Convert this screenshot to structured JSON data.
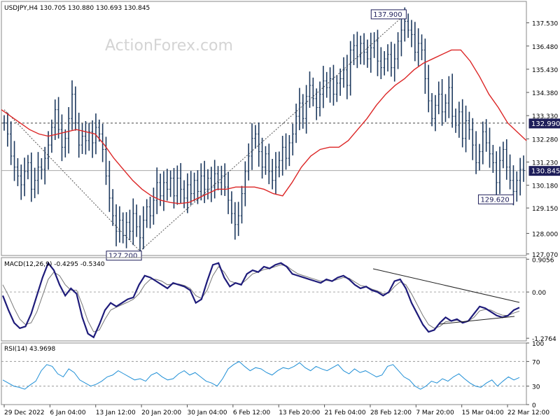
{
  "watermark": "ActionForex.com",
  "chart_data": [
    {
      "type": "candlestick",
      "title": "USDJPY,H4",
      "ohlc_label": "130.705 130.880 130.693 130.845",
      "ylim": [
        127.0,
        138.5
      ],
      "y_ticks": [
        127.07,
        128.0,
        129.15,
        130.18,
        131.23,
        132.28,
        133.33,
        134.38,
        135.43,
        136.48,
        137.53
      ],
      "y_tick_labels": [
        "127.070",
        "128.000",
        "129.150",
        "130.180",
        "131.230",
        "132.280",
        "133.330",
        "134.380",
        "135.430",
        "136.480",
        "137.530"
      ],
      "x_labels": [
        "29 Dec 2022",
        "6 Jan 04:00",
        "13 Jan 12:00",
        "20 Jan 20:00",
        "30 Jan 04:00",
        "6 Feb 12:00",
        "13 Feb 20:00",
        "21 Feb 04:00",
        "28 Feb 12:00",
        "7 Mar 20:00",
        "15 Mar 04:00",
        "22 Mar 12:00"
      ],
      "close": [
        133.0,
        132.5,
        131.5,
        131.0,
        130.6,
        130.2,
        130.8,
        131.2,
        130.0,
        130.4,
        131.0,
        130.9,
        131.4,
        132.0,
        132.8,
        133.6,
        132.7,
        131.9,
        132.3,
        133.2,
        134.3,
        133.0,
        132.0,
        132.4,
        132.2,
        132.6,
        132.1,
        132.8,
        132.5,
        131.8,
        130.6,
        129.6,
        128.8,
        128.1,
        128.6,
        127.9,
        128.5,
        128.1,
        128.9,
        128.3,
        127.8,
        128.6,
        129.2,
        128.8,
        129.5,
        130.3,
        129.7,
        130.3,
        130.0,
        130.5,
        129.7,
        130.5,
        130.0,
        129.6,
        130.2,
        129.8,
        130.4,
        129.9,
        130.6,
        130.0,
        130.5,
        130.1,
        130.7,
        130.3,
        130.6,
        130.1,
        129.5,
        128.9,
        128.4,
        128.8,
        129.8,
        130.8,
        131.5,
        132.3,
        132.5,
        131.7,
        131.0,
        131.6,
        130.8,
        130.4,
        131.0,
        131.3,
        131.9,
        131.4,
        132.1,
        132.5,
        133.3,
        133.9,
        133.2,
        134.2,
        134.7,
        134.1,
        133.7,
        134.3,
        134.9,
        134.6,
        135.0,
        134.3,
        134.8,
        135.0,
        135.4,
        134.7,
        136.3,
        136.5,
        136.0,
        136.6,
        136.2,
        135.9,
        136.4,
        136.7,
        135.8,
        135.5,
        135.9,
        136.1,
        135.5,
        135.9,
        136.7,
        137.2,
        137.6,
        137.2,
        137.0,
        136.2,
        136.6,
        136.3,
        135.0,
        134.0,
        133.2,
        133.8,
        134.3,
        133.5,
        133.9,
        134.6,
        133.3,
        132.9,
        133.5,
        132.3,
        133.1,
        132.7,
        132.0,
        131.2,
        131.7,
        132.6,
        132.1,
        131.6,
        131.2,
        130.3,
        131.3,
        131.8,
        131.0,
        130.4,
        129.9,
        130.4,
        130.9,
        130.85
      ],
      "moving_average": [
        133.6,
        133.3,
        133.0,
        132.7,
        132.5,
        132.4,
        132.5,
        132.6,
        132.7,
        132.6,
        132.5,
        132.0,
        131.4,
        130.9,
        130.4,
        130.0,
        129.7,
        129.5,
        129.4,
        129.35,
        129.4,
        129.6,
        129.8,
        130.0,
        130.0,
        130.1,
        130.1,
        130.1,
        130.0,
        129.8,
        129.7,
        130.3,
        131.0,
        131.5,
        131.8,
        131.9,
        131.9,
        132.2,
        132.7,
        133.2,
        133.8,
        134.3,
        134.7,
        135.0,
        135.4,
        135.7,
        135.9,
        136.1,
        136.3,
        136.3,
        135.8,
        135.1,
        134.3,
        133.7,
        133.0,
        132.6,
        132.2
      ],
      "ma_color": "#dc2626",
      "support_level": 132.99,
      "current_price": 130.845,
      "annotations": [
        {
          "text": "137.900",
          "value": 137.9
        },
        {
          "text": "127.200",
          "value": 127.2
        },
        {
          "text": "129.620",
          "value": 129.62
        },
        {
          "text": "132.990",
          "value": 132.99
        },
        {
          "text": "130.845",
          "value": 130.845
        }
      ]
    },
    {
      "type": "line",
      "title": "MACD(12,26,9) -0.4295 -0.5340",
      "ylim": [
        -1.35,
        0.95
      ],
      "y_tick_labels": [
        "0.9056",
        "0.00",
        "-1.2764"
      ],
      "y_ticks": [
        0.9056,
        0.0,
        -1.2764
      ],
      "series": [
        {
          "values": [
            -0.1,
            -0.5,
            -0.85,
            -1.0,
            -0.95,
            -0.6,
            -0.1,
            0.4,
            0.8,
            0.6,
            0.2,
            -0.1,
            0.1,
            -0.05,
            -0.7,
            -1.15,
            -1.25,
            -0.9,
            -0.5,
            -0.3,
            -0.4,
            -0.3,
            -0.2,
            -0.15,
            0.2,
            0.45,
            0.4,
            0.3,
            0.2,
            0.1,
            0.25,
            0.2,
            0.15,
            0.05,
            -0.3,
            -0.2,
            0.3,
            0.75,
            0.8,
            0.4,
            0.15,
            0.25,
            0.2,
            0.5,
            0.6,
            0.55,
            0.7,
            0.65,
            0.75,
            0.8,
            0.7,
            0.5,
            0.45,
            0.4,
            0.35,
            0.3,
            0.25,
            0.35,
            0.3,
            0.4,
            0.45,
            0.35,
            0.2,
            0.1,
            0.15,
            0.05,
            0.0,
            -0.1,
            0.0,
            0.3,
            0.35,
            0.1,
            -0.3,
            -0.6,
            -0.9,
            -1.1,
            -1.05,
            -0.85,
            -0.7,
            -0.8,
            -0.75,
            -0.85,
            -0.8,
            -0.6,
            -0.4,
            -0.45,
            -0.55,
            -0.65,
            -0.7,
            -0.65,
            -0.5,
            -0.43
          ],
          "color": "#1e1b7a"
        },
        {
          "values": [
            0.2,
            -0.1,
            -0.45,
            -0.75,
            -0.9,
            -0.85,
            -0.55,
            -0.1,
            0.35,
            0.55,
            0.45,
            0.2,
            0.05,
            0.05,
            -0.35,
            -0.8,
            -1.1,
            -1.05,
            -0.75,
            -0.5,
            -0.42,
            -0.35,
            -0.28,
            -0.2,
            -0.05,
            0.2,
            0.35,
            0.35,
            0.3,
            0.2,
            0.22,
            0.22,
            0.18,
            0.1,
            -0.1,
            -0.18,
            0.05,
            0.45,
            0.7,
            0.55,
            0.3,
            0.25,
            0.22,
            0.35,
            0.5,
            0.55,
            0.62,
            0.65,
            0.7,
            0.75,
            0.72,
            0.6,
            0.5,
            0.45,
            0.4,
            0.35,
            0.3,
            0.32,
            0.3,
            0.35,
            0.4,
            0.38,
            0.28,
            0.18,
            0.15,
            0.08,
            0.03,
            -0.05,
            -0.03,
            0.15,
            0.28,
            0.2,
            -0.05,
            -0.35,
            -0.65,
            -0.9,
            -1.0,
            -0.95,
            -0.82,
            -0.8,
            -0.78,
            -0.82,
            -0.8,
            -0.7,
            -0.52,
            -0.48,
            -0.5,
            -0.58,
            -0.64,
            -0.65,
            -0.58,
            -0.53
          ],
          "color": "#777777"
        }
      ]
    },
    {
      "type": "line",
      "title": "RSI(14) 43.9698",
      "ylim": [
        0,
        100
      ],
      "y_ticks": [
        100,
        70,
        30,
        0
      ],
      "y_tick_labels": [
        "100",
        "70",
        "30",
        "0"
      ],
      "series": [
        {
          "values": [
            40,
            35,
            30,
            28,
            25,
            32,
            38,
            55,
            65,
            62,
            50,
            45,
            58,
            52,
            40,
            35,
            30,
            33,
            38,
            45,
            48,
            55,
            50,
            45,
            40,
            42,
            38,
            48,
            52,
            45,
            40,
            42,
            50,
            55,
            48,
            52,
            45,
            38,
            35,
            30,
            42,
            58,
            65,
            70,
            62,
            55,
            60,
            58,
            52,
            48,
            55,
            60,
            58,
            62,
            68,
            60,
            55,
            62,
            58,
            55,
            60,
            65,
            55,
            50,
            58,
            52,
            55,
            50,
            45,
            48,
            62,
            65,
            55,
            45,
            40,
            30,
            25,
            30,
            38,
            35,
            42,
            38,
            45,
            50,
            42,
            35,
            30,
            28,
            35,
            40,
            30,
            38,
            45,
            40,
            44
          ],
          "color": "#1f8fd6"
        }
      ]
    }
  ]
}
